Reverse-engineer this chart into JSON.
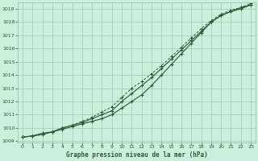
{
  "xlabel": "Graphe pression niveau de la mer (hPa)",
  "bg_color": "#cceedd",
  "grid_color": "#99bbaa",
  "line_color": "#335533",
  "ylim": [
    1009,
    1019.5
  ],
  "xlim": [
    -0.5,
    23.5
  ],
  "yticks": [
    1009,
    1010,
    1011,
    1012,
    1013,
    1014,
    1015,
    1016,
    1017,
    1018,
    1019
  ],
  "xticks": [
    0,
    1,
    2,
    3,
    4,
    5,
    6,
    7,
    8,
    9,
    10,
    11,
    12,
    13,
    14,
    15,
    16,
    17,
    18,
    19,
    20,
    21,
    22,
    23
  ],
  "hours": [
    0,
    1,
    2,
    3,
    4,
    5,
    6,
    7,
    8,
    9,
    10,
    11,
    12,
    13,
    14,
    15,
    16,
    17,
    18,
    19,
    20,
    21,
    22,
    23
  ],
  "line1": [
    1009.3,
    1009.4,
    1009.6,
    1009.7,
    1010.0,
    1010.2,
    1010.4,
    1010.7,
    1011.0,
    1011.3,
    1012.0,
    1012.6,
    1013.2,
    1013.8,
    1014.5,
    1015.2,
    1015.9,
    1016.6,
    1017.3,
    1018.0,
    1018.5,
    1018.8,
    1019.1,
    1019.3
  ],
  "line2": [
    1009.3,
    1009.4,
    1009.5,
    1009.7,
    1010.0,
    1010.2,
    1010.5,
    1010.8,
    1011.2,
    1011.6,
    1012.3,
    1013.0,
    1013.5,
    1014.1,
    1014.7,
    1015.4,
    1016.1,
    1016.8,
    1017.5,
    1018.1,
    1018.6,
    1018.9,
    1019.1,
    1019.4
  ],
  "line3": [
    1009.3,
    1009.4,
    1009.5,
    1009.7,
    1009.9,
    1010.1,
    1010.3,
    1010.5,
    1010.7,
    1011.0,
    1011.5,
    1012.0,
    1012.5,
    1013.2,
    1014.0,
    1014.8,
    1015.6,
    1016.4,
    1017.2,
    1018.0,
    1018.5,
    1018.8,
    1019.0,
    1019.3
  ]
}
